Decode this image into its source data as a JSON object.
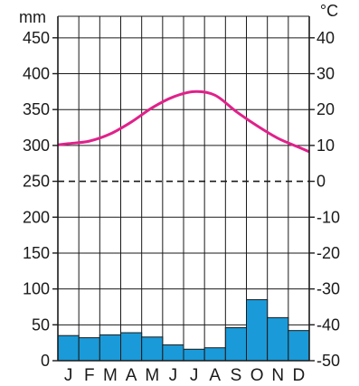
{
  "chart_data": {
    "type": "climate-diagram",
    "categories": [
      "J",
      "F",
      "M",
      "A",
      "M",
      "J",
      "J",
      "A",
      "S",
      "O",
      "N",
      "D"
    ],
    "precipitation": {
      "unit": "mm",
      "values": [
        35,
        32,
        36,
        39,
        33,
        22,
        16,
        18,
        46,
        85,
        60,
        42
      ],
      "ylim": [
        0,
        480
      ],
      "ticks": [
        "0",
        "50",
        "100",
        "150",
        "200",
        "250",
        "300",
        "350",
        "400",
        "450"
      ],
      "bar_color": "#1a9ad8"
    },
    "temperature": {
      "unit": "°C",
      "values": [
        10.5,
        11.2,
        13.2,
        16.5,
        20.5,
        23.5,
        25.0,
        24.0,
        19.5,
        15.5,
        12.0,
        9.5
      ],
      "ylim": [
        -50,
        46
      ],
      "ticks": [
        "-50",
        "-40",
        "-30",
        "-20",
        "-10",
        "0",
        "10",
        "20",
        "30",
        "40"
      ],
      "line_color": "#e0218a"
    },
    "zero_line": "dashed",
    "grid": true
  }
}
